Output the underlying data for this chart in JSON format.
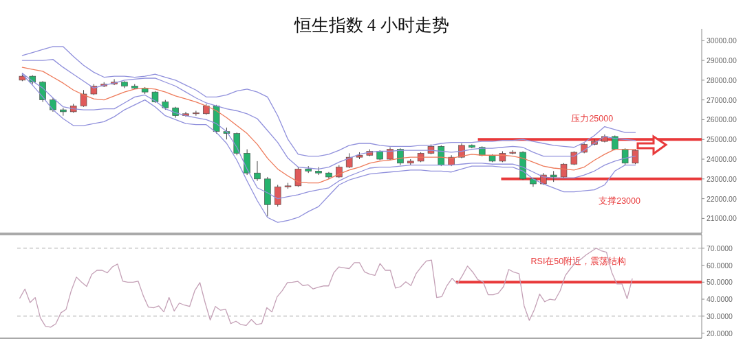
{
  "chart_data": [
    {
      "type": "candlestick",
      "title": "恒生指数 4 小时走势",
      "categories": [
        null,
        null,
        null,
        null,
        null,
        null,
        null,
        null,
        null,
        null,
        null,
        null,
        null,
        null,
        null,
        null,
        null,
        null,
        null,
        null,
        null,
        null,
        null,
        null,
        null,
        null,
        null,
        null,
        null,
        null,
        null,
        null,
        null,
        null,
        null,
        null,
        null,
        null,
        null,
        null,
        null,
        null,
        null,
        null,
        null,
        null,
        null,
        null,
        null,
        null,
        null,
        null,
        null,
        null,
        null,
        null,
        null,
        null,
        null,
        null,
        null,
        null,
        null,
        null,
        null,
        null,
        null
      ],
      "ohlc": [
        [
          28000,
          28350,
          27950,
          28200
        ],
        [
          28200,
          28250,
          27800,
          27900
        ],
        [
          27900,
          27950,
          26900,
          27000
        ],
        [
          27000,
          27100,
          26400,
          26500
        ],
        [
          26500,
          26600,
          26200,
          26400
        ],
        [
          26400,
          26800,
          26350,
          26700
        ],
        [
          26700,
          27500,
          26650,
          27300
        ],
        [
          27300,
          27800,
          27250,
          27700
        ],
        [
          27700,
          27900,
          27650,
          27800
        ],
        [
          27800,
          28050,
          27750,
          27900
        ],
        [
          27900,
          27950,
          27600,
          27700
        ],
        [
          27700,
          27800,
          27550,
          27600
        ],
        [
          27600,
          27650,
          27300,
          27400
        ],
        [
          27400,
          27450,
          26850,
          26900
        ],
        [
          26900,
          27000,
          26500,
          26600
        ],
        [
          26600,
          26650,
          26100,
          26200
        ],
        [
          26200,
          26400,
          26150,
          26300
        ],
        [
          26300,
          26450,
          26200,
          26350
        ],
        [
          26300,
          26800,
          26250,
          26700
        ],
        [
          26700,
          26750,
          25300,
          25400
        ],
        [
          25400,
          25600,
          25000,
          25300
        ],
        [
          25300,
          25350,
          24200,
          24300
        ],
        [
          24300,
          24500,
          23200,
          23300
        ],
        [
          23300,
          23900,
          22900,
          23000
        ],
        [
          23000,
          23100,
          21100,
          21700
        ],
        [
          21700,
          22700,
          21600,
          22600
        ],
        [
          22600,
          22800,
          22500,
          22650
        ],
        [
          22650,
          23600,
          22600,
          23500
        ],
        [
          23500,
          23650,
          23300,
          23400
        ],
        [
          23400,
          23600,
          23200,
          23300
        ],
        [
          23300,
          23350,
          23000,
          23100
        ],
        [
          23100,
          23700,
          23050,
          23600
        ],
        [
          23600,
          24300,
          23550,
          24100
        ],
        [
          24100,
          24350,
          24000,
          24200
        ],
        [
          24200,
          24500,
          24150,
          24400
        ],
        [
          24400,
          24450,
          23950,
          24000
        ],
        [
          24000,
          24600,
          23950,
          24500
        ],
        [
          24500,
          24550,
          23700,
          23800
        ],
        [
          23800,
          24000,
          23700,
          23900
        ],
        [
          23900,
          24350,
          23850,
          24300
        ],
        [
          24300,
          24750,
          24250,
          24650
        ],
        [
          24650,
          24700,
          23650,
          23700
        ],
        [
          23700,
          24200,
          23650,
          24100
        ],
        [
          24100,
          24800,
          24050,
          24700
        ],
        [
          24700,
          24750,
          24550,
          24600
        ],
        [
          24600,
          24650,
          24150,
          24200
        ],
        [
          24200,
          24250,
          23850,
          23900
        ],
        [
          23900,
          24400,
          23850,
          24300
        ],
        [
          24300,
          24450,
          24250,
          24350
        ],
        [
          24350,
          24400,
          22950,
          23000
        ],
        [
          23000,
          23050,
          22600,
          22750
        ],
        [
          22750,
          23300,
          22700,
          23200
        ],
        [
          23200,
          23400,
          22850,
          23100
        ],
        [
          23100,
          23800,
          23050,
          23750
        ],
        [
          23750,
          24400,
          23700,
          24350
        ],
        [
          24350,
          24800,
          24300,
          24750
        ],
        [
          24750,
          25000,
          24700,
          24900
        ],
        [
          24900,
          25250,
          24850,
          25150
        ],
        [
          25150,
          25200,
          24450,
          24500
        ],
        [
          24500,
          24550,
          23700,
          23800
        ],
        [
          23800,
          24500,
          23750,
          24450
        ],
        null,
        null,
        null,
        null,
        null,
        null
      ],
      "colors": [
        "#e05a5a",
        "#26b36e",
        "#26b36e",
        "#26b36e",
        "#26b36e",
        "#e05a5a",
        "#e05a5a",
        "#e05a5a",
        "#e05a5a",
        "#e05a5a",
        "#26b36e",
        "#26b36e",
        "#26b36e",
        "#26b36e",
        "#26b36e",
        "#26b36e",
        "#e05a5a",
        "#e05a5a",
        "#e05a5a",
        "#26b36e",
        "#26b36e",
        "#26b36e",
        "#26b36e",
        "#26b36e",
        "#26b36e",
        "#e05a5a",
        "#e05a5a",
        "#e05a5a",
        "#26b36e",
        "#26b36e",
        "#26b36e",
        "#e05a5a",
        "#e05a5a",
        "#e05a5a",
        "#e05a5a",
        "#26b36e",
        "#e05a5a",
        "#26b36e",
        "#e05a5a",
        "#e05a5a",
        "#e05a5a",
        "#26b36e",
        "#e05a5a",
        "#e05a5a",
        "#26b36e",
        "#26b36e",
        "#26b36e",
        "#e05a5a",
        "#e05a5a",
        "#26b36e",
        "#26b36e",
        "#e05a5a",
        "#26b36e",
        "#e05a5a",
        "#e05a5a",
        "#e05a5a",
        "#e05a5a",
        "#e05a5a",
        "#26b36e",
        "#26b36e",
        "#e05a5a",
        null,
        null,
        null,
        null,
        null,
        null
      ],
      "series": [
        {
          "type": "line",
          "color": "#9090dc",
          "values": [
            29250,
            29400,
            29550,
            29700,
            29700,
            29200,
            28750,
            28400,
            28150,
            28200,
            28200,
            28150,
            28200,
            28300,
            28150,
            28000,
            27750,
            27500,
            27150,
            27150,
            27250,
            27450,
            27550,
            27400,
            27150,
            26200,
            25000,
            24250,
            24150,
            24150,
            24250,
            24450,
            24700,
            24800,
            24800,
            24700,
            24650,
            24650,
            24650,
            24700,
            24700,
            24800,
            24850,
            24850,
            24850,
            24900,
            24900,
            24950,
            24950,
            25000,
            24900,
            24800,
            24700,
            24650,
            24600,
            24850,
            25200,
            25650,
            25500,
            25350,
            25350,
            null,
            null,
            null,
            null,
            null,
            null
          ]
        },
        {
          "type": "line",
          "color": "#9090dc",
          "values": [
            29000,
            29000,
            29000,
            29050,
            28650,
            28300,
            27950,
            27600,
            27750,
            27850,
            28000,
            28050,
            28100,
            28100,
            27900,
            27700,
            27400,
            27100,
            26850,
            26700,
            26550,
            26450,
            26300,
            26050,
            25450,
            24850,
            24050,
            23600,
            23550,
            23500,
            23600,
            23850,
            24050,
            24250,
            24350,
            24400,
            24400,
            24450,
            24450,
            24450,
            24450,
            24400,
            24350,
            24400,
            24500,
            24550,
            24550,
            24600,
            24650,
            24600,
            24350,
            24150,
            24150,
            24150,
            24150,
            24450,
            24800,
            25150,
            25050,
            25000,
            24950,
            null,
            null,
            null,
            null,
            null,
            null
          ]
        },
        {
          "type": "line",
          "color": "#ee7a5a",
          "values": [
            28650,
            28550,
            28450,
            28150,
            27850,
            27500,
            27250,
            27050,
            27000,
            27200,
            27400,
            27550,
            27600,
            27550,
            27400,
            27200,
            27050,
            26900,
            26700,
            26450,
            26100,
            25700,
            25300,
            24750,
            24050,
            23500,
            23150,
            22850,
            22800,
            22800,
            23000,
            23250,
            23450,
            23600,
            23800,
            23900,
            23950,
            24050,
            24100,
            24100,
            24100,
            24100,
            24050,
            24150,
            24250,
            24200,
            24200,
            24200,
            24150,
            24050,
            23850,
            23650,
            23550,
            23500,
            23450,
            23600,
            23950,
            24250,
            24500,
            24500,
            24500,
            null,
            null,
            null,
            null,
            null,
            null
          ]
        },
        {
          "type": "line",
          "color": "#9090dc",
          "values": [
            28350,
            27950,
            27600,
            27100,
            26650,
            26550,
            26500,
            26500,
            26550,
            26550,
            26850,
            27150,
            27250,
            26950,
            26550,
            26350,
            26200,
            26100,
            26000,
            25800,
            25400,
            24600,
            23500,
            22550,
            22300,
            22000,
            22100,
            22200,
            22350,
            22450,
            22550,
            22900,
            23150,
            23350,
            23550,
            23600,
            23600,
            23650,
            23700,
            23700,
            23700,
            23700,
            23700,
            23750,
            23800,
            23800,
            23750,
            23750,
            23750,
            23600,
            23350,
            23100,
            23050,
            23050,
            23050,
            23200,
            23400,
            23700,
            23900,
            24050,
            24150,
            null,
            null,
            null,
            null,
            null,
            null
          ]
        },
        {
          "type": "line",
          "color": "#9090dc",
          "values": [
            28300,
            27750,
            27150,
            26500,
            26050,
            25700,
            25700,
            25800,
            25900,
            26150,
            26500,
            26750,
            27000,
            26650,
            26200,
            26000,
            25800,
            25750,
            25750,
            25350,
            24800,
            23950,
            22900,
            21900,
            21050,
            20800,
            20900,
            21050,
            21350,
            21600,
            22150,
            22700,
            22950,
            23100,
            23250,
            23300,
            23350,
            23400,
            23450,
            23450,
            23400,
            23400,
            23350,
            23500,
            23650,
            23650,
            23650,
            23600,
            23600,
            23400,
            23000,
            22750,
            22550,
            22350,
            22350,
            22400,
            22450,
            22700,
            23400,
            23700,
            23700,
            null,
            null,
            null,
            null,
            null,
            null
          ]
        }
      ],
      "ylim": [
        20250,
        30600
      ],
      "yticks": [
        {
          "value": 21000,
          "label": "21000.00"
        },
        {
          "value": 22000,
          "label": "22000.00"
        },
        {
          "value": 23000,
          "label": "23000.00"
        },
        {
          "value": 24000,
          "label": "24000.00"
        },
        {
          "value": 25000,
          "label": "25000.00"
        },
        {
          "value": 26000,
          "label": "26000.00"
        },
        {
          "value": 27000,
          "label": "27000.00"
        },
        {
          "value": 28000,
          "label": "28000.00"
        },
        {
          "value": 29000,
          "label": "29000.00"
        },
        {
          "value": 30000,
          "label": "30000.00"
        }
      ],
      "ref_lines": [
        {
          "axis": "y",
          "value": 25000,
          "label": "压力25000",
          "color": "#e8393a"
        },
        {
          "axis": "y",
          "value": 23000,
          "label": "支撑23000",
          "color": "#e8393a"
        }
      ]
    },
    {
      "type": "line",
      "categories": [
        null,
        null,
        null,
        null,
        null,
        null,
        null,
        null,
        null,
        null,
        null,
        null,
        null,
        null,
        null,
        null,
        null,
        null,
        null,
        null,
        null,
        null,
        null,
        null,
        null,
        null,
        null,
        null,
        null,
        null,
        null,
        null,
        null,
        null,
        null,
        null,
        null,
        null,
        null,
        null,
        null,
        null,
        null,
        null,
        null,
        null,
        null,
        null,
        null,
        null,
        null,
        null,
        null,
        null,
        null,
        null,
        null,
        null,
        null,
        null,
        null,
        null,
        null,
        null,
        null,
        null,
        null,
        null,
        null,
        null,
        null,
        null,
        null,
        null,
        null,
        null,
        null,
        null,
        null,
        null,
        null,
        null,
        null,
        null,
        null,
        null,
        null,
        null,
        null,
        null,
        null,
        null,
        null,
        null,
        null,
        null,
        null,
        null,
        null,
        null,
        null,
        null,
        null,
        null,
        null,
        null,
        null,
        null,
        null,
        null,
        null,
        null,
        null,
        null,
        null,
        null,
        null,
        null,
        null,
        null,
        null,
        null,
        null,
        null,
        null,
        null,
        null,
        null,
        null,
        null,
        null,
        null,
        null
      ],
      "series": [
        {
          "color": "#c4a0b6",
          "values": [
            40.6,
            46,
            38,
            41,
            29,
            24,
            23.5,
            25.5,
            32,
            34,
            45,
            53,
            50,
            47.5,
            54.7,
            57,
            57,
            55.5,
            59,
            60.7,
            50.6,
            50,
            50,
            50.6,
            42,
            35.3,
            34.9,
            36,
            32.5,
            41,
            33,
            37.7,
            36.5,
            35.7,
            45,
            49.8,
            38.1,
            27.7,
            35.7,
            33.5,
            34,
            25.6,
            27,
            25,
            24.5,
            28,
            25,
            25.6,
            35,
            32.5,
            41.4,
            45,
            49.8,
            50,
            50.5,
            48,
            48.5,
            46,
            47,
            47.8,
            47.8,
            55.5,
            59,
            58.5,
            58,
            61.5,
            61.5,
            56,
            54.7,
            54,
            61,
            57,
            57,
            46.5,
            47.4,
            50.2,
            48,
            55,
            59,
            62.5,
            63,
            41,
            41.5,
            48,
            52.3,
            49,
            53.9,
            59.5,
            56,
            51.5,
            50.3,
            42.6,
            42.6,
            43.6,
            47.4,
            57.5,
            55.9,
            55,
            36,
            27.5,
            34,
            43,
            38.5,
            40,
            39.5,
            45,
            53.9,
            58,
            61.5,
            63.5,
            66,
            68,
            70,
            68.5,
            67.6,
            55.9,
            49,
            49,
            40.3,
            52,
            null,
            null,
            null,
            null,
            null,
            null,
            null,
            null,
            null,
            null,
            null,
            null,
            null
          ]
        }
      ],
      "ylim": [
        17,
        78
      ],
      "yticks": [
        {
          "value": 20,
          "label": "20.0000"
        },
        {
          "value": 30,
          "label": "30.0000"
        },
        {
          "value": 40,
          "label": "40.0000"
        },
        {
          "value": 50,
          "label": "50.0000"
        },
        {
          "value": 60,
          "label": "60.0000"
        },
        {
          "value": 70,
          "label": "70.0000"
        }
      ],
      "ref_lines": [
        {
          "axis": "y",
          "value": 70,
          "color": "#aaaaaa",
          "line_style": "dashed"
        },
        {
          "axis": "y",
          "value": 30,
          "color": "#aaaaaa",
          "line_style": "dashed"
        },
        {
          "axis": "y",
          "value": 50,
          "label": "RSI在50附近，震荡结构",
          "color": "#e8393a"
        }
      ]
    }
  ]
}
